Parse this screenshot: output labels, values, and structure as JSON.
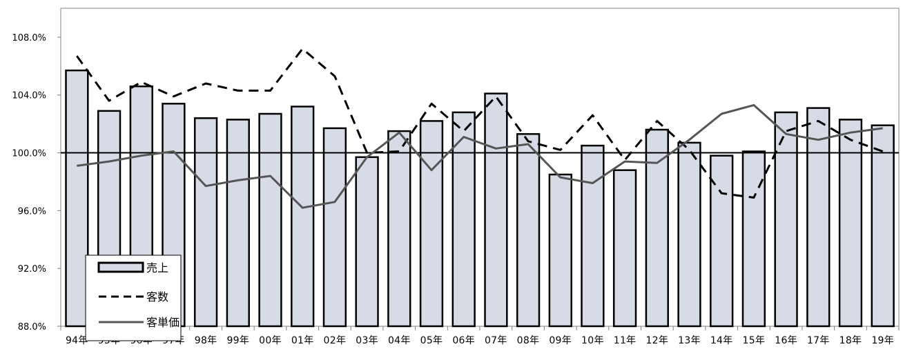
{
  "chart_data": {
    "type": "bar",
    "categories": [
      "94年",
      "95年",
      "96年",
      "97年",
      "98年",
      "99年",
      "00年",
      "01年",
      "02年",
      "03年",
      "04年",
      "05年",
      "06年",
      "07年",
      "08年",
      "09年",
      "10年",
      "11年",
      "12年",
      "13年",
      "14年",
      "15年",
      "16年",
      "17年",
      "18年",
      "19年"
    ],
    "ylim": [
      88.0,
      110.0
    ],
    "yticks": [
      88.0,
      92.0,
      96.0,
      100.0,
      104.0,
      108.0
    ],
    "ytick_labels": [
      "88.0%",
      "92.0%",
      "96.0%",
      "100.0%",
      "104.0%",
      "108.0%"
    ],
    "reference_line": 100.0,
    "grid": false,
    "legend_position": "bottom-left",
    "series": [
      {
        "name": "売上",
        "type": "bar",
        "color": "#d6dbe6",
        "values": [
          105.7,
          102.9,
          104.6,
          103.4,
          102.4,
          102.3,
          102.7,
          103.2,
          101.7,
          99.7,
          101.5,
          102.2,
          102.8,
          104.1,
          101.3,
          98.5,
          100.5,
          98.8,
          101.6,
          100.7,
          99.8,
          100.1,
          102.8,
          103.1,
          102.3,
          101.9
        ]
      },
      {
        "name": "客数",
        "type": "line",
        "style": "dashed",
        "color": "#000000",
        "values": [
          106.7,
          103.6,
          104.9,
          103.9,
          104.8,
          104.3,
          104.3,
          107.2,
          105.3,
          100.0,
          100.1,
          103.4,
          101.5,
          103.9,
          100.8,
          100.2,
          102.6,
          99.5,
          102.2,
          100.2,
          97.2,
          96.9,
          101.5,
          102.2,
          100.9,
          100.1
        ]
      },
      {
        "name": "客単価",
        "type": "line",
        "style": "solid",
        "color": "#555555",
        "values": [
          99.1,
          99.4,
          99.8,
          100.1,
          97.7,
          98.1,
          98.4,
          96.2,
          96.6,
          99.7,
          101.4,
          98.8,
          101.1,
          100.3,
          100.6,
          98.3,
          97.9,
          99.4,
          99.3,
          100.9,
          102.7,
          103.3,
          101.3,
          100.9,
          101.4,
          101.7
        ]
      }
    ]
  }
}
